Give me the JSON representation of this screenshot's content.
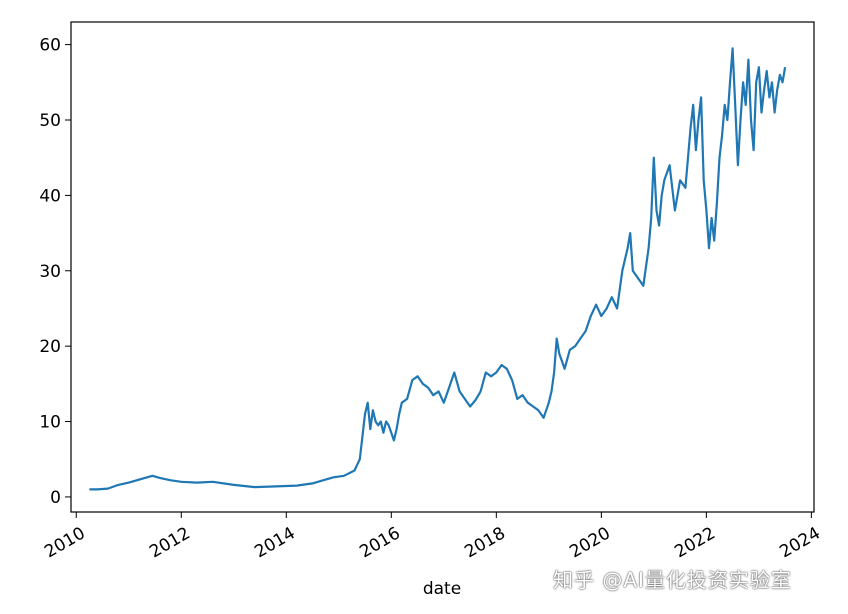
{
  "watermark": "知乎 @AI量化投资实验室",
  "chart_data": {
    "type": "line",
    "title": "",
    "xlabel": "date",
    "ylabel": "",
    "xlim": [
      2009.9,
      2024.05
    ],
    "ylim": [
      -2,
      63
    ],
    "xticks": [
      2010,
      2012,
      2014,
      2016,
      2018,
      2020,
      2022,
      2024
    ],
    "xtick_labels": [
      "2010",
      "2012",
      "2014",
      "2016",
      "2018",
      "2020",
      "2022",
      "2024"
    ],
    "yticks": [
      0,
      10,
      20,
      30,
      40,
      50,
      60
    ],
    "ytick_labels": [
      "0",
      "10",
      "20",
      "30",
      "40",
      "50",
      "60"
    ],
    "grid": false,
    "series": [
      {
        "color": "#1f77b4",
        "x": [
          2010.25,
          2010.4,
          2010.6,
          2010.8,
          2011.0,
          2011.2,
          2011.45,
          2011.6,
          2011.8,
          2012.0,
          2012.3,
          2012.6,
          2013.0,
          2013.4,
          2013.8,
          2014.2,
          2014.5,
          2014.7,
          2014.9,
          2015.1,
          2015.3,
          2015.4,
          2015.45,
          2015.5,
          2015.55,
          2015.6,
          2015.65,
          2015.7,
          2015.75,
          2015.8,
          2015.85,
          2015.9,
          2015.95,
          2016.0,
          2016.05,
          2016.1,
          2016.15,
          2016.2,
          2016.3,
          2016.4,
          2016.5,
          2016.6,
          2016.7,
          2016.8,
          2016.9,
          2017.0,
          2017.1,
          2017.2,
          2017.3,
          2017.4,
          2017.5,
          2017.6,
          2017.7,
          2017.8,
          2017.9,
          2018.0,
          2018.1,
          2018.2,
          2018.3,
          2018.4,
          2018.5,
          2018.6,
          2018.7,
          2018.8,
          2018.9,
          2019.0,
          2019.05,
          2019.1,
          2019.15,
          2019.2,
          2019.25,
          2019.3,
          2019.4,
          2019.5,
          2019.6,
          2019.7,
          2019.8,
          2019.9,
          2020.0,
          2020.1,
          2020.2,
          2020.3,
          2020.4,
          2020.5,
          2020.55,
          2020.6,
          2020.7,
          2020.8,
          2020.9,
          2020.95,
          2021.0,
          2021.05,
          2021.1,
          2021.15,
          2021.2,
          2021.3,
          2021.4,
          2021.5,
          2021.6,
          2021.7,
          2021.75,
          2021.8,
          2021.85,
          2021.9,
          2021.95,
          2022.0,
          2022.05,
          2022.1,
          2022.15,
          2022.2,
          2022.25,
          2022.3,
          2022.35,
          2022.4,
          2022.45,
          2022.5,
          2022.55,
          2022.6,
          2022.65,
          2022.7,
          2022.75,
          2022.8,
          2022.85,
          2022.9,
          2022.95,
          2023.0,
          2023.05,
          2023.1,
          2023.15,
          2023.2,
          2023.25,
          2023.3,
          2023.35,
          2023.4,
          2023.45,
          2023.5
        ],
        "y": [
          1.0,
          1.0,
          1.1,
          1.6,
          1.9,
          2.3,
          2.8,
          2.5,
          2.2,
          2.0,
          1.9,
          2.0,
          1.6,
          1.3,
          1.4,
          1.5,
          1.8,
          2.2,
          2.6,
          2.8,
          3.5,
          5.0,
          8.0,
          11.0,
          12.5,
          9.0,
          11.5,
          10.0,
          9.5,
          10.0,
          8.5,
          10.0,
          9.5,
          8.5,
          7.5,
          9.0,
          11.0,
          12.5,
          13.0,
          15.5,
          16.0,
          15.0,
          14.5,
          13.5,
          14.0,
          12.5,
          14.5,
          16.5,
          14.0,
          13.0,
          12.0,
          12.8,
          14.0,
          16.5,
          16.0,
          16.5,
          17.5,
          17.0,
          15.5,
          13.0,
          13.5,
          12.5,
          12.0,
          11.5,
          10.5,
          12.5,
          14.0,
          16.5,
          21.0,
          19.0,
          18.0,
          17.0,
          19.5,
          20.0,
          21.0,
          22.0,
          24.0,
          25.5,
          24.0,
          25.0,
          26.5,
          25.0,
          30.0,
          33.0,
          35.0,
          30.0,
          29.0,
          28.0,
          33.0,
          37.0,
          45.0,
          38.0,
          36.0,
          40.0,
          42.0,
          44.0,
          38.0,
          42.0,
          41.0,
          49.0,
          52.0,
          46.0,
          50.0,
          53.0,
          42.0,
          38.0,
          33.0,
          37.0,
          34.0,
          39.0,
          45.0,
          48.0,
          52.0,
          50.0,
          55.0,
          59.5,
          52.0,
          44.0,
          50.0,
          55.0,
          52.0,
          58.0,
          50.0,
          46.0,
          55.0,
          57.0,
          51.0,
          54.0,
          56.5,
          53.0,
          55.0,
          51.0,
          54.0,
          56.0,
          55.0,
          57.0
        ]
      }
    ]
  }
}
